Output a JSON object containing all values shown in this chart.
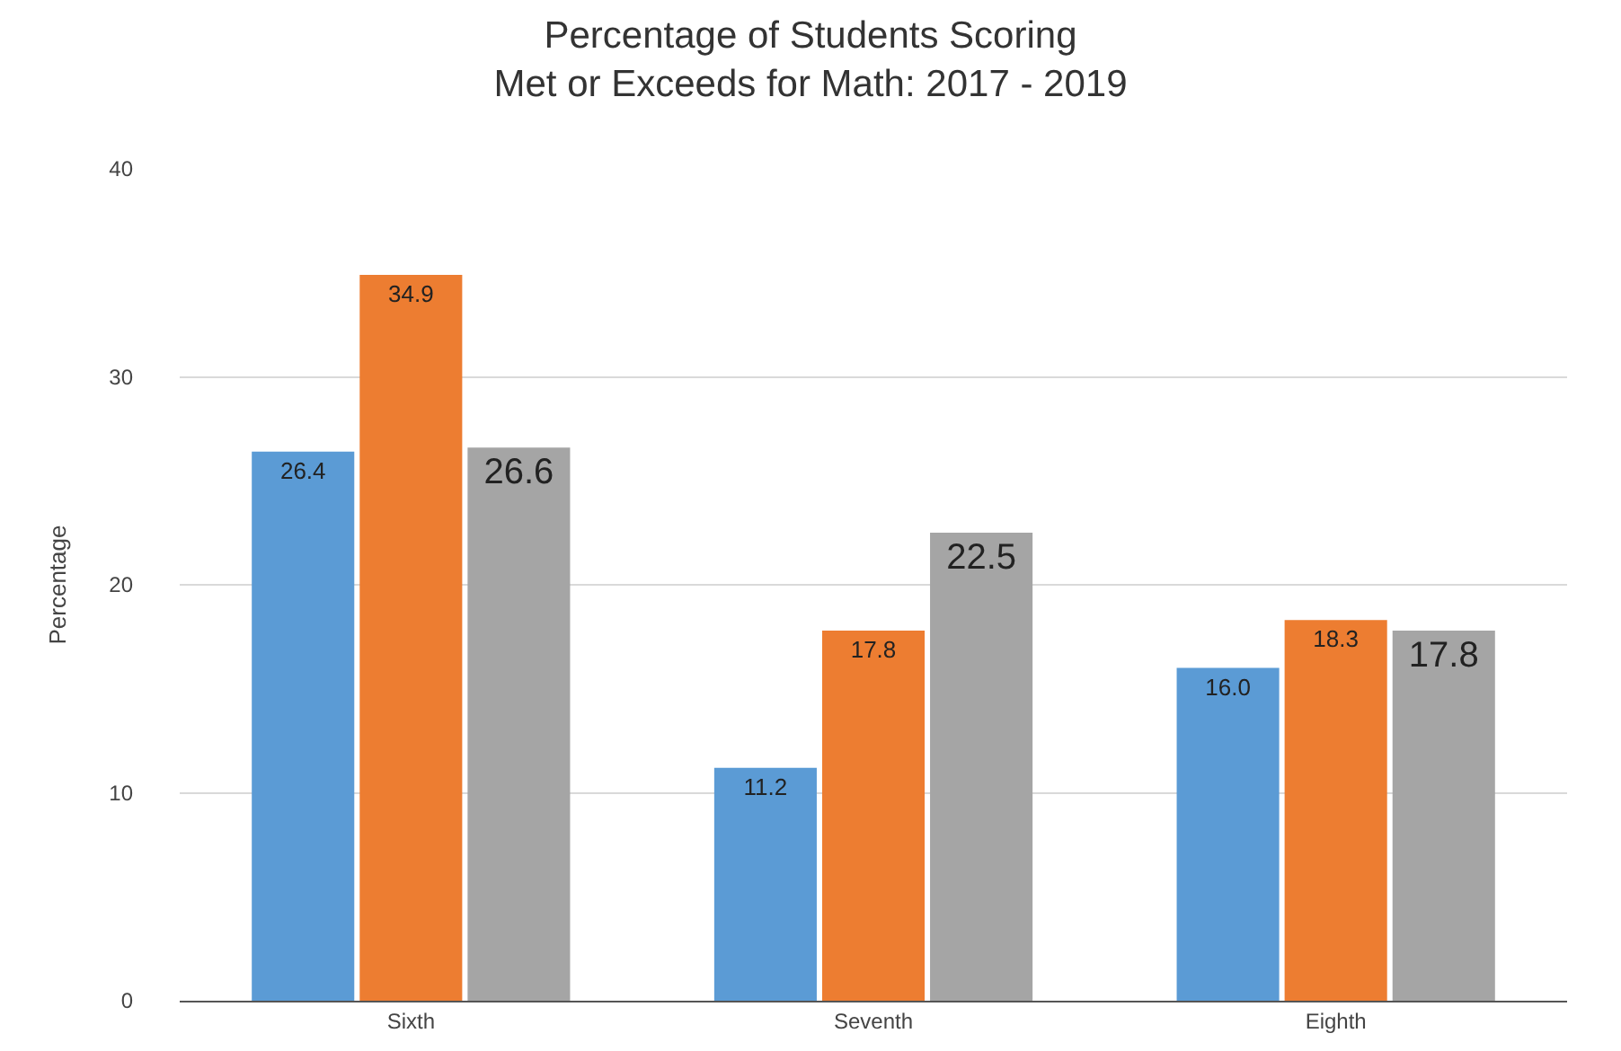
{
  "chart_data": {
    "type": "bar",
    "title": "Percentage of Students Scoring\nMet or Exceeds for Math: 2017 - 2019",
    "ylabel": "Percentage",
    "categories": [
      "Sixth",
      "Seventh",
      "Eighth"
    ],
    "series": [
      {
        "color": "#5b9bd5",
        "values": [
          26.4,
          11.2,
          16.0
        ],
        "value_labels": [
          "26.4",
          "11.2",
          "16.0"
        ]
      },
      {
        "color": "#ed7d31",
        "values": [
          34.9,
          17.8,
          18.3
        ],
        "value_labels": [
          "34.9",
          "17.8",
          "18.3"
        ]
      },
      {
        "color": "#a5a5a5",
        "values": [
          26.6,
          22.5,
          17.8
        ],
        "value_labels": [
          "26.6",
          "22.5",
          "17.8"
        ]
      }
    ],
    "ylim": [
      0,
      40
    ],
    "yticks": [
      0,
      10,
      20,
      30,
      40
    ],
    "grid": "y"
  }
}
